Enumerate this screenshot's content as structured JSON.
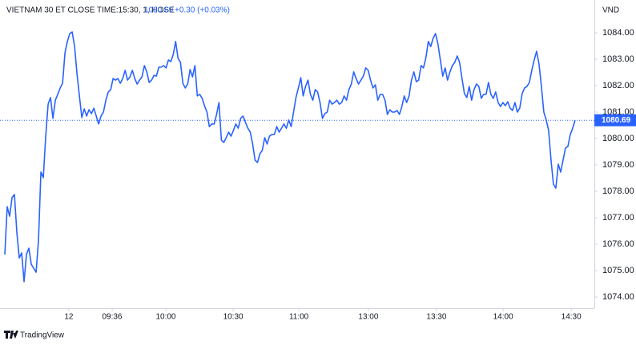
{
  "chart_data": {
    "type": "line",
    "title": "VIETNAM 30 ET CLOSE TIME:15:30, 1, HOSE",
    "last_price": 1080.69,
    "change": "+0.30 (+0.03%)",
    "currency": "VND",
    "brand": "TradingView",
    "color": "#2962ff",
    "grid": false,
    "values": [
      1075.61,
      1077.42,
      1077.06,
      1077.76,
      1077.88,
      1076.45,
      1075.48,
      1075.67,
      1074.58,
      1075.61,
      1075.85,
      1075.24,
      1075.09,
      1074.94,
      1076.15,
      1078.73,
      1078.52,
      1080.09,
      1081.3,
      1081.55,
      1080.76,
      1081.45,
      1081.67,
      1081.91,
      1082.09,
      1083.24,
      1083.67,
      1083.97,
      1084.03,
      1083.48,
      1082.45,
      1081.61,
      1080.79,
      1081.12,
      1080.85,
      1081.09,
      1080.94,
      1081.15,
      1080.85,
      1080.55,
      1080.85,
      1081.0,
      1081.45,
      1081.76,
      1081.85,
      1082.27,
      1082.21,
      1082.27,
      1082.09,
      1082.27,
      1082.58,
      1082.21,
      1082.33,
      1082.58,
      1082.27,
      1082.06,
      1082.21,
      1082.33,
      1082.76,
      1082.52,
      1082.12,
      1082.21,
      1082.39,
      1082.36,
      1082.7,
      1082.7,
      1082.76,
      1082.67,
      1082.97,
      1082.91,
      1083.18,
      1083.67,
      1083.03,
      1082.88,
      1082.09,
      1081.91,
      1082.06,
      1082.61,
      1082.33,
      1082.76,
      1081.61,
      1081.67,
      1081.52,
      1081.24,
      1081.0,
      1080.45,
      1080.55,
      1080.55,
      1080.91,
      1081.36,
      1079.94,
      1079.85,
      1080.03,
      1080.24,
      1080.09,
      1080.3,
      1080.55,
      1080.39,
      1080.76,
      1080.85,
      1080.61,
      1080.39,
      1080.24,
      1079.79,
      1079.18,
      1079.09,
      1079.42,
      1079.55,
      1080.03,
      1079.79,
      1080.09,
      1080.15,
      1080.15,
      1080.45,
      1080.24,
      1080.39,
      1080.55,
      1080.39,
      1080.7,
      1080.45,
      1081.0,
      1081.55,
      1081.91,
      1082.3,
      1081.61,
      1081.97,
      1082.21,
      1081.67,
      1081.45,
      1081.85,
      1081.76,
      1081.36,
      1080.76,
      1080.94,
      1081.0,
      1081.45,
      1081.3,
      1081.36,
      1081.45,
      1081.3,
      1081.36,
      1081.61,
      1081.45,
      1081.85,
      1082.06,
      1082.52,
      1082.27,
      1082.06,
      1082.21,
      1082.36,
      1082.67,
      1082.58,
      1082.21,
      1081.91,
      1082.03,
      1081.45,
      1081.67,
      1081.67,
      1081.45,
      1080.91,
      1081.09,
      1081.0,
      1081.0,
      1081.06,
      1080.91,
      1081.21,
      1081.61,
      1081.36,
      1081.61,
      1082.21,
      1082.52,
      1082.15,
      1082.21,
      1082.76,
      1082.67,
      1083.06,
      1083.67,
      1083.48,
      1083.79,
      1083.97,
      1083.58,
      1082.97,
      1082.36,
      1082.67,
      1082.21,
      1082.52,
      1082.76,
      1082.88,
      1083.12,
      1082.88,
      1082.27,
      1081.7,
      1081.55,
      1081.97,
      1081.45,
      1081.85,
      1082.06,
      1081.97,
      1081.52,
      1081.67,
      1081.67,
      1082.12,
      1081.67,
      1081.52,
      1081.76,
      1081.36,
      1081.21,
      1081.36,
      1081.24,
      1081.39,
      1081.15,
      1081.06,
      1081.36,
      1081.0,
      1081.15,
      1081.7,
      1081.91,
      1081.97,
      1082.12,
      1082.58,
      1082.97,
      1083.3,
      1082.82,
      1081.97,
      1081.0,
      1080.7,
      1080.3,
      1079.18,
      1078.27,
      1078.12,
      1079.03,
      1078.73,
      1079.18,
      1079.64,
      1079.7,
      1080.15,
      1080.39,
      1080.69
    ],
    "xlim": [
      -2,
      245
    ],
    "xticks": [
      {
        "value": 26.6,
        "label": "12"
      },
      {
        "value": 44.6,
        "label": "09:36"
      },
      {
        "value": 66.9,
        "label": "10:00"
      },
      {
        "value": 94.9,
        "label": "10:30"
      },
      {
        "value": 122.2,
        "label": "11:00"
      },
      {
        "value": 151.1,
        "label": "13:00"
      },
      {
        "value": 179.4,
        "label": "13:30"
      },
      {
        "value": 207.1,
        "label": "14:00"
      },
      {
        "value": 235.4,
        "label": "14:30"
      }
    ],
    "ylim": [
      1073.58,
      1085.24
    ],
    "yticks": [
      {
        "value": 1074,
        "label": "1074.00"
      },
      {
        "value": 1075,
        "label": "1075.00"
      },
      {
        "value": 1076,
        "label": "1076.00"
      },
      {
        "value": 1077,
        "label": "1077.00"
      },
      {
        "value": 1078,
        "label": "1078.00"
      },
      {
        "value": 1079,
        "label": "1079.00"
      },
      {
        "value": 1080,
        "label": "1080.00"
      },
      {
        "value": 1081,
        "label": "1081.00"
      },
      {
        "value": 1082,
        "label": "1082.00"
      },
      {
        "value": 1083,
        "label": "1083.00"
      },
      {
        "value": 1084,
        "label": "1084.00"
      }
    ]
  }
}
